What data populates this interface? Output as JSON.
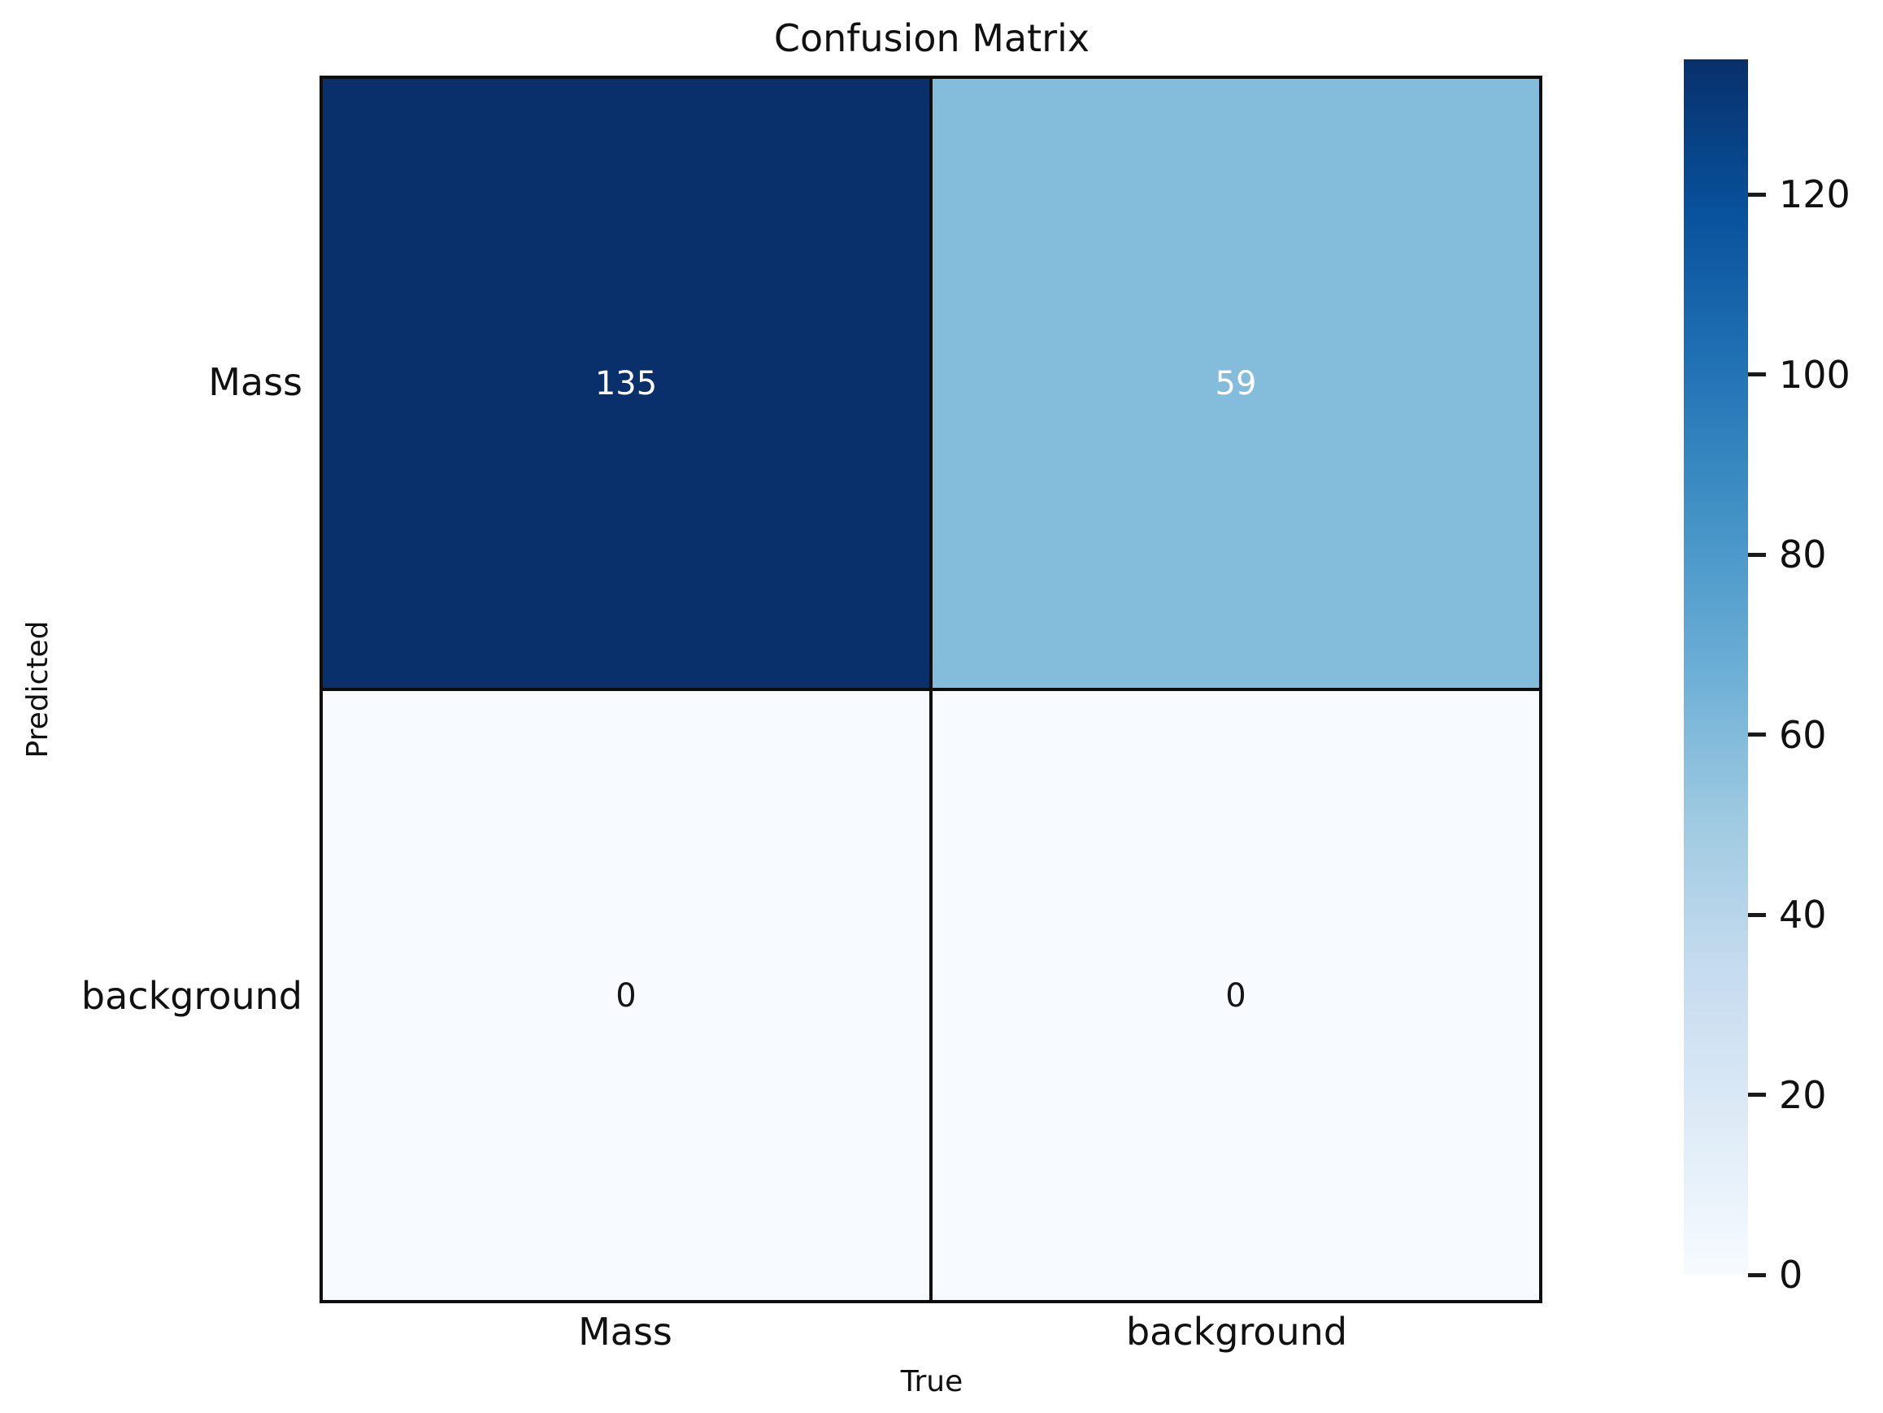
{
  "chart_data": {
    "type": "heatmap",
    "title": "Confusion Matrix",
    "xlabel": "True",
    "ylabel": "Predicted",
    "x_categories": [
      "Mass",
      "background"
    ],
    "y_categories": [
      "Mass",
      "background"
    ],
    "matrix": [
      [
        135,
        59
      ],
      [
        0,
        0
      ]
    ],
    "vmin": 0,
    "vmax": 135,
    "colormap": "Blues",
    "grid_line_color": "#0e0e0e",
    "background_color": "#ffffff",
    "cells": [
      {
        "row": 0,
        "col": 0,
        "value": "135",
        "color": "#0a306b",
        "text_color": "#ffffff"
      },
      {
        "row": 0,
        "col": 1,
        "value": "59",
        "color": "#84bcdc",
        "text_color": "#ffffff"
      },
      {
        "row": 1,
        "col": 0,
        "value": "0",
        "color": "#f7fbff",
        "text_color": "#151515"
      },
      {
        "row": 1,
        "col": 1,
        "value": "0",
        "color": "#f7fbff",
        "text_color": "#151515"
      }
    ],
    "colorbar": {
      "vmin": 0,
      "vmax": 135,
      "ticks": [
        {
          "value": 0,
          "label": "0"
        },
        {
          "value": 20,
          "label": "20"
        },
        {
          "value": 40,
          "label": "40"
        },
        {
          "value": 60,
          "label": "60"
        },
        {
          "value": 80,
          "label": "80"
        },
        {
          "value": 100,
          "label": "100"
        },
        {
          "value": 120,
          "label": "120"
        }
      ],
      "gradient_stops": [
        {
          "offset": 0.0,
          "color": "#f7fbff"
        },
        {
          "offset": 0.125,
          "color": "#deebf7"
        },
        {
          "offset": 0.25,
          "color": "#c6dbef"
        },
        {
          "offset": 0.375,
          "color": "#9ecae1"
        },
        {
          "offset": 0.5,
          "color": "#6baed6"
        },
        {
          "offset": 0.625,
          "color": "#4292c6"
        },
        {
          "offset": 0.75,
          "color": "#2171b5"
        },
        {
          "offset": 0.875,
          "color": "#08519c"
        },
        {
          "offset": 1.0,
          "color": "#08306b"
        }
      ]
    }
  }
}
